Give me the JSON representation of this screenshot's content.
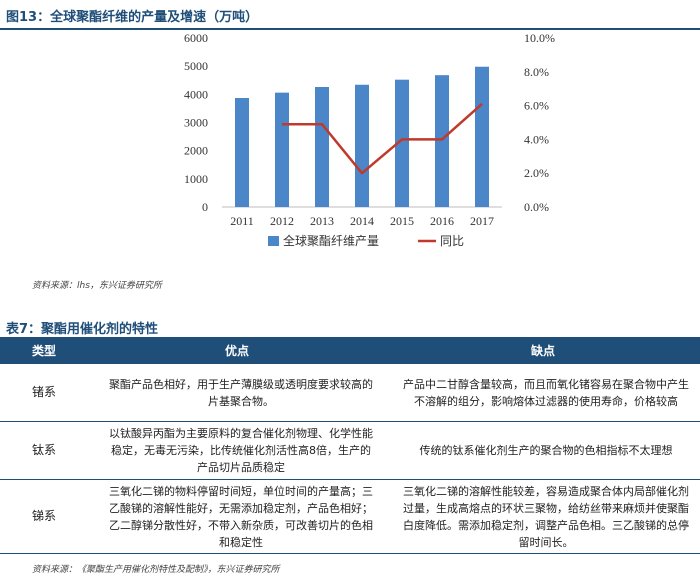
{
  "figure_title": "图13：全球聚酯纤维的产量及增速（万吨）",
  "chart_data": {
    "type": "bar+line",
    "categories": [
      "2011",
      "2012",
      "2013",
      "2014",
      "2015",
      "2016",
      "2017"
    ],
    "series": [
      {
        "name": "全球聚酯纤维产量",
        "type": "bar",
        "axis": "left",
        "color": "#4a86c8",
        "values": [
          3870,
          4060,
          4260,
          4340,
          4520,
          4680,
          4980
        ]
      },
      {
        "name": "同比",
        "type": "line",
        "axis": "right",
        "color": "#c0392b",
        "values": [
          null,
          4.9,
          4.9,
          2.0,
          4.0,
          4.0,
          6.1
        ]
      }
    ],
    "y_left": {
      "min": 0,
      "max": 6000,
      "ticks": [
        "0",
        "1000",
        "2000",
        "3000",
        "4000",
        "5000",
        "6000"
      ]
    },
    "y_right": {
      "min": 0,
      "max": 10,
      "ticks": [
        "0.0%",
        "2.0%",
        "4.0%",
        "6.0%",
        "8.0%",
        "10.0%"
      ]
    },
    "legend_position": "bottom",
    "grid": false
  },
  "source1": "资料来源：lhs，东兴证券研究所",
  "table_title": "表7：聚酯用催化剂的特性",
  "table": {
    "headers": [
      "类型",
      "优点",
      "缺点"
    ],
    "rows": [
      {
        "type": "锗系",
        "pros": "聚酯产品色相好，用于生产薄膜级或透明度要求较高的片基聚合物。",
        "cons": "产品中二甘醇含量较高，而且而氧化锗容易在聚合物中产生不溶解的组分，影响熔体过滤器的使用寿命，价格较高"
      },
      {
        "type": "钛系",
        "pros": "以钛酸异丙酯为主要原料的复合催化剂物理、化学性能稳定，无毒无污染，比传统催化剂活性高8倍，生产的产品切片品质稳定",
        "cons": "传统的钛系催化剂生产的聚合物的色相指标不太理想"
      },
      {
        "type": "锑系",
        "pros": "三氧化二锑的物料停留时间短，单位时间的产量高；三乙酸锑的溶解性能好，无需添加稳定剂，产品色相好；乙二醇锑分散性好，不带入新杂质，可改善切片的色相和稳定性",
        "cons": "三氧化二锑的溶解性能较差，容易造成聚合体内局部催化剂过量，生成高熔点的环状三聚物，给纺丝带来麻烦并使聚酯白度降低。需添加稳定剂，调整产品色相。三乙酸锑的总停留时间长。"
      }
    ]
  },
  "source2": "资料来源：《聚酯生产用催化剂特性及配制》，东兴证券研究所"
}
